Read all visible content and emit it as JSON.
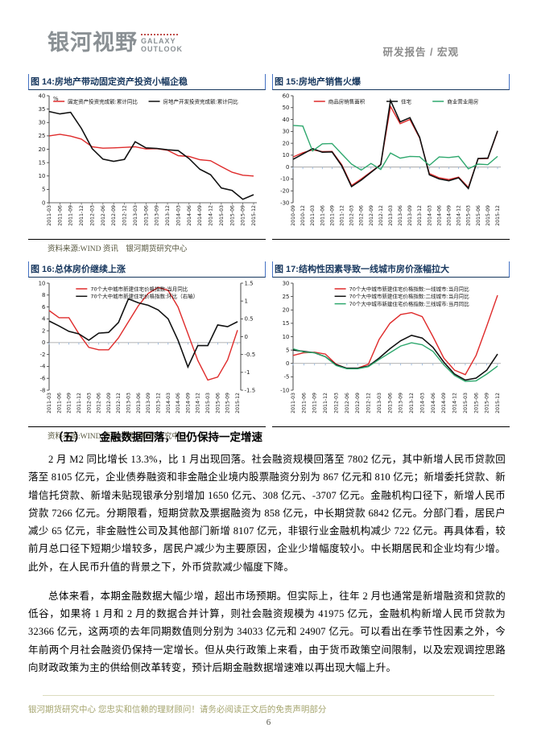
{
  "header": {
    "logo_cn": "银河视野",
    "logo_en_1": "GALAXY",
    "logo_en_2": "OUTLOOK",
    "doc_type": "研发报告",
    "separator": "/",
    "category": "宏观"
  },
  "colors": {
    "title_blue": "#17375E",
    "series_red": "#DF2B2B",
    "series_black": "#111111",
    "series_green": "#2FA86E",
    "footer_tan": "#a6a670"
  },
  "chart_data": [
    {
      "type": "line",
      "title": "图 14:房地产带动固定资产投资小幅企稳",
      "source": "资料来源:WIND 资讯　银河期货研究中心",
      "unit": "%",
      "ylim": [
        0,
        40
      ],
      "yticks": [
        0,
        5,
        10,
        15,
        20,
        25,
        30,
        35,
        40
      ],
      "legend_layout": "row",
      "legend_x": 0.02,
      "legend_gap": 8,
      "categories": [
        "2011-03",
        "2011-06",
        "2011-09",
        "2011-12",
        "2012-03",
        "2012-06",
        "2012-09",
        "2012-12",
        "2013-03",
        "2013-06",
        "2013-09",
        "2013-12",
        "2014-03",
        "2014-06",
        "2014-09",
        "2014-12",
        "2015-03",
        "2015-06",
        "2015-09",
        "2015-12"
      ],
      "series": [
        {
          "name": "固定资产投资完成额:累计同比",
          "color": "#DF2B2B",
          "values": [
            25.0,
            25.6,
            24.9,
            23.8,
            20.9,
            20.4,
            20.5,
            20.7,
            20.9,
            20.1,
            20.2,
            19.6,
            17.6,
            17.3,
            16.1,
            15.7,
            13.5,
            11.4,
            10.3,
            10.0
          ]
        },
        {
          "name": "房地产开发投资完成额:累计同比",
          "color": "#111111",
          "values": [
            34.1,
            33.2,
            33.8,
            27.8,
            20.2,
            16.3,
            15.5,
            16.2,
            22.8,
            20.5,
            20.3,
            19.8,
            19.5,
            16.5,
            12.5,
            10.5,
            5.5,
            4.6,
            1.3,
            3.0
          ]
        }
      ]
    },
    {
      "type": "line",
      "title": "图 15:房地产销售火爆",
      "source": "",
      "ylim": [
        -30,
        60
      ],
      "yticks": [
        -30,
        -20,
        -10,
        0,
        10,
        20,
        30,
        40,
        50,
        60
      ],
      "legend_layout": "row",
      "legend_x": 0.1,
      "legend_gap": 26,
      "categories": [
        "2010-09",
        "2010-12",
        "2011-03",
        "2011-06",
        "2011-09",
        "2011-12",
        "2012-03",
        "2012-06",
        "2012-09",
        "2012-12",
        "2013-03",
        "2013-06",
        "2013-09",
        "2013-12",
        "2014-03",
        "2014-06",
        "2014-09",
        "2014-12",
        "2015-03",
        "2015-06",
        "2015-09",
        "2015-12"
      ],
      "series": [
        {
          "name": "商品房销售面积",
          "color": "#DF2B2B",
          "values": [
            8.5,
            12.0,
            14.5,
            13.0,
            13.2,
            2.0,
            -15.5,
            -10.0,
            -4.0,
            2.2,
            51.0,
            36.5,
            40.0,
            24.5,
            -5.5,
            -9.0,
            -10.5,
            -8.5,
            -17.0,
            7.0,
            7.2,
            30.0
          ]
        },
        {
          "name": "住宅",
          "color": "#111111",
          "values": [
            6.5,
            11.0,
            15.5,
            12.5,
            12.8,
            1.0,
            -16.5,
            -11.0,
            -4.5,
            2.0,
            56.0,
            38.0,
            41.5,
            25.0,
            -6.5,
            -10.0,
            -11.5,
            -9.0,
            -18.0,
            7.2,
            7.5,
            30.5
          ]
        },
        {
          "name": "商业营业用房",
          "color": "#2FA86E",
          "values": [
            35.0,
            34.5,
            13.5,
            19.5,
            19.8,
            11.0,
            2.5,
            -2.5,
            3.0,
            -2.0,
            11.8,
            7.5,
            9.0,
            8.7,
            1.5,
            8.5,
            8.0,
            9.0,
            -1.5,
            2.5,
            2.0,
            9.0
          ]
        }
      ]
    },
    {
      "type": "line",
      "title": "图 16:总体房价继续上涨",
      "source": "资料来源:WIND 资讯　银河期货研究中心",
      "ylim": [
        -8,
        10
      ],
      "yticks": [
        -8,
        -6,
        -4,
        -2,
        0,
        2,
        4,
        6,
        8,
        10
      ],
      "y2lim": [
        -1.5,
        1.5
      ],
      "y2ticks": [
        -1.5,
        -1,
        -0.5,
        0,
        0.5,
        1,
        1.5
      ],
      "legend_layout": "stack",
      "legend_x": 0.14,
      "categories": [
        "2011-03",
        "2011-06",
        "2011-09",
        "2011-12",
        "2012-03",
        "2012-06",
        "2012-09",
        "2012-12",
        "2013-03",
        "2013-06",
        "2013-09",
        "2013-12",
        "2014-03",
        "2014-06",
        "2014-09",
        "2014-12",
        "2015-03",
        "2015-06",
        "2015-09",
        "2015-12"
      ],
      "series": [
        {
          "name": "70个大中城市新建住宅价格指数:当月同比",
          "color": "#DF2B2B",
          "values": [
            5.4,
            4.2,
            4.2,
            1.5,
            -0.8,
            -1.2,
            -1.2,
            0.8,
            3.5,
            6.2,
            8.3,
            9.3,
            8.8,
            6.0,
            1.5,
            -3.0,
            -6.3,
            -5.8,
            -2.9,
            2.1
          ]
        },
        {
          "name": "70个大中城市新建住宅价格指数:环比（右轴）",
          "color": "#111111",
          "axis": "right",
          "values": [
            0.44,
            0.3,
            0.15,
            0.08,
            -0.1,
            0.1,
            0.12,
            0.4,
            1.06,
            0.95,
            0.88,
            0.75,
            0.5,
            -0.1,
            -0.85,
            -0.25,
            -0.25,
            0.33,
            0.28,
            0.42
          ]
        }
      ]
    },
    {
      "type": "line",
      "title": "图 17:结构性因素导致一线城市房价涨幅拉大",
      "source": "",
      "ylim": [
        -10,
        30
      ],
      "yticks": [
        -10,
        -5,
        0,
        5,
        10,
        15,
        20,
        25,
        30
      ],
      "legend_layout": "stack",
      "legend_x": 0.2,
      "categories": [
        "2011-03",
        "2011-06",
        "2011-09",
        "2011-12",
        "2012-03",
        "2012-06",
        "2012-09",
        "2012-12",
        "2013-03",
        "2013-06",
        "2013-09",
        "2013-12",
        "2014-03",
        "2014-06",
        "2014-09",
        "2014-12",
        "2015-03",
        "2015-06",
        "2015-09",
        "2015-12"
      ],
      "series": [
        {
          "name": "70个大中城市新建住宅价格指数:一线城市:当月同比",
          "color": "#DF2B2B",
          "values": [
            3.0,
            4.0,
            4.2,
            3.5,
            -0.3,
            -1.9,
            -1.8,
            -0.3,
            9.0,
            15.0,
            18.3,
            19.0,
            17.5,
            10.0,
            2.0,
            -2.5,
            -4.2,
            3.0,
            14.0,
            25.5
          ]
        },
        {
          "name": "70个大中城市新建住宅价格指数:二线城市:当月同比",
          "color": "#111111",
          "values": [
            5.0,
            4.5,
            4.0,
            2.5,
            -0.5,
            -1.8,
            -1.8,
            -1.0,
            2.0,
            5.5,
            8.5,
            10.5,
            9.5,
            6.0,
            0.5,
            -4.0,
            -6.2,
            -5.5,
            -2.5,
            3.5
          ]
        },
        {
          "name": "70个大中城市新建住宅价格指数:三线城市:当月同比",
          "color": "#2FA86E",
          "values": [
            5.5,
            4.3,
            4.0,
            2.5,
            -0.8,
            -2.0,
            -2.0,
            -1.2,
            1.5,
            4.0,
            6.5,
            7.7,
            7.0,
            4.5,
            -0.5,
            -4.5,
            -6.7,
            -6.5,
            -4.0,
            -1.0
          ]
        }
      ]
    }
  ],
  "section": {
    "heading_number": "（五）",
    "heading_text": "金融数据回落，但仍保持一定增速"
  },
  "paragraphs": [
    "2 月 M2 同比增长 13.3%，比 1 月出现回落。社会融资规模回落至 7802 亿元，其中新增人民币贷款回落至 8105 亿元，企业债券融资和非金融企业境内股票融资分别为 867 亿元和 810 亿元；新增委托贷款、新增信托贷款、新增未贴现银承分别增加 1650 亿元、308 亿元、-3707 亿元。金融机构口径下，新增人民币贷款 7266 亿元。分期限看，短期贷款及票据融资为 858 亿元，中长期贷款 6842 亿元。分部门看，居民户减少 65 亿元，非金融性公司及其他部门新增 8107 亿元，非银行业金融机构减少 722 亿元。再具体看，较前月总口径下短期少增较多，居民户减少为主要原因，企业少增幅度较小。中长期居民和企业均有少增。此外，在人民币升值的背景之下，外币贷款减少幅度下降。",
    "总体来看，本期金融数据大幅少增，超出市场预期。但实际上，往年 2 月也通常是新增融资和贷款的低谷，如果将 1 月和 2 月的数据合并计算，则社会融资规模为 41975 亿元，金融机构新增人民币贷款为 32366 亿元，这两项的去年同期数值则分别为 34033 亿元和 24907 亿元。可以看出在季节性因素之外，今年前两个月社会融资仍保持一定增长。但从央行政策上来看，由于货币政策空间限制，以及宏观调控思路向财政政策为主的供给侧改革转变，预计后期金融数据增速难以再出现大幅上升。"
  ],
  "footer": {
    "disclaimer": "银河期货研究中心 您忠实和信赖的理财顾问！请务必阅读正文后的免责声明部分",
    "page_number": "6"
  }
}
